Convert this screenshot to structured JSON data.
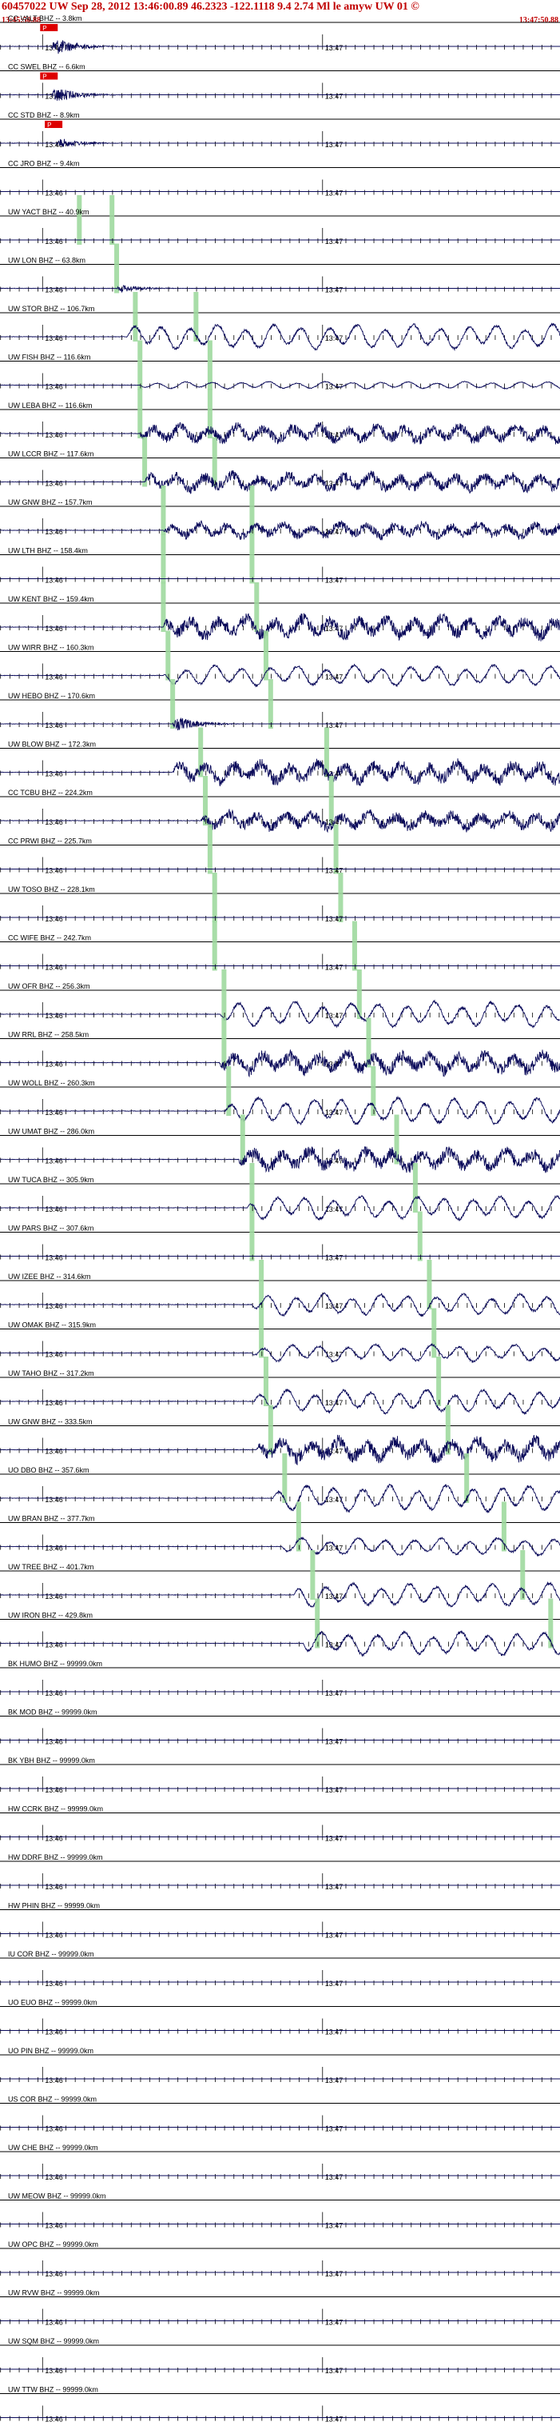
{
  "header": {
    "event_title": "60457022 UW Sep 28, 2012 13:46:00.89    46.2323 -122.1118  9.4 2.74 Ml le amyw UW 01   ©",
    "start_time": "13:45:50.88",
    "end_time": "13:47:50.88"
  },
  "colors": {
    "trace": "#0a0a5a",
    "pick_band": "#9ed99e",
    "pick_marker": "#dd0000",
    "header_text": "#c00000",
    "grid": "#000000"
  },
  "time_tick_labels": [
    "13:46",
    "13:47"
  ],
  "pick_marker_label": "P",
  "chart_data": {
    "type": "line",
    "title": "60457022 UW Sep 28, 2012 13:46:00.89    46.2323 -122.1118  9.4 2.74 Ml le amyw UW 01",
    "xlabel": "",
    "ylabel": "",
    "x_range": [
      "13:45:50.88",
      "13:47:50.88"
    ],
    "series": [
      {
        "name": "CC VALT BHZ -- 3.8km",
        "arrival_s": 11,
        "amp": 0.9,
        "dom": "hf",
        "markers": [
          11
        ]
      },
      {
        "name": "CC SWEL BHZ -- 6.6km",
        "arrival_s": 11,
        "amp": 0.8,
        "dom": "hf",
        "markers": [
          11
        ]
      },
      {
        "name": "CC STD BHZ -- 8.9km",
        "arrival_s": 12,
        "amp": 0.5,
        "dom": "hf",
        "markers": [
          12
        ]
      },
      {
        "name": "CC JRO BHZ -- 9.4km",
        "arrival_s": 12,
        "amp": 0.0,
        "dom": "flat"
      },
      {
        "name": "UW YACT BHZ -- 40.9km",
        "arrival_s": 13,
        "amp": 0.0,
        "dom": "flat",
        "picks_s": [
          17,
          24
        ]
      },
      {
        "name": "UW LON BHZ -- 63.8km",
        "arrival_s": 25,
        "amp": 0.4,
        "dom": "hf",
        "picks_s": [
          25
        ]
      },
      {
        "name": "UW STOR BHZ -- 106.7km",
        "arrival_s": 27,
        "amp": 0.85,
        "dom": "lf",
        "picks_s": [
          29,
          42
        ]
      },
      {
        "name": "UW FISH BHZ -- 116.6km",
        "arrival_s": 30,
        "amp": 0.25,
        "dom": "lf",
        "picks_s": [
          30,
          45
        ]
      },
      {
        "name": "UW LEBA BHZ -- 116.6km",
        "arrival_s": 30,
        "amp": 0.7,
        "dom": "mix",
        "picks_s": [
          30,
          45
        ]
      },
      {
        "name": "UW LCCR BHZ -- 117.6km",
        "arrival_s": 31,
        "amp": 0.7,
        "dom": "mix",
        "picks_s": [
          31,
          46
        ]
      },
      {
        "name": "UW GNW BHZ -- 157.7km",
        "arrival_s": 35,
        "amp": 0.6,
        "dom": "mix",
        "picks_s": [
          35,
          54
        ]
      },
      {
        "name": "UW LTH BHZ -- 158.4km",
        "arrival_s": 35,
        "amp": 0.0,
        "dom": "flat",
        "picks_s": [
          35,
          54
        ]
      },
      {
        "name": "UW KENT BHZ -- 159.4km",
        "arrival_s": 35,
        "amp": 0.85,
        "dom": "mix",
        "picks_s": [
          35,
          55
        ]
      },
      {
        "name": "UW WIRR BHZ -- 160.3km",
        "arrival_s": 35,
        "amp": 0.7,
        "dom": "lf",
        "picks_s": [
          36,
          57
        ]
      },
      {
        "name": "UW HEBO BHZ -- 170.6km",
        "arrival_s": 37,
        "amp": 0.75,
        "dom": "hf",
        "picks_s": [
          37,
          58
        ]
      },
      {
        "name": "UW BLOW BHZ -- 172.3km",
        "arrival_s": 37,
        "amp": 0.85,
        "dom": "mix",
        "picks_s": [
          43,
          70
        ]
      },
      {
        "name": "CC TCBU BHZ -- 224.2km",
        "arrival_s": 43,
        "amp": 0.7,
        "dom": "mix",
        "picks_s": [
          44,
          71
        ]
      },
      {
        "name": "CC PRWI BHZ -- 225.7km",
        "arrival_s": 43,
        "amp": 0.0,
        "dom": "flat",
        "picks_s": [
          45,
          72
        ]
      },
      {
        "name": "UW TOSO BHZ -- 228.1km",
        "arrival_s": 44,
        "amp": 0.0,
        "dom": "flat",
        "picks_s": [
          46,
          73
        ]
      },
      {
        "name": "CC WIFE BHZ -- 242.7km",
        "arrival_s": 46,
        "amp": 0.0,
        "dom": "flat",
        "picks_s": [
          46,
          76
        ]
      },
      {
        "name": "UW OFR BHZ -- 256.3km",
        "arrival_s": 47,
        "amp": 0.85,
        "dom": "lf",
        "picks_s": [
          48,
          77
        ]
      },
      {
        "name": "UW RRL BHZ -- 258.5km",
        "arrival_s": 47,
        "amp": 0.85,
        "dom": "mix",
        "picks_s": [
          48,
          79
        ]
      },
      {
        "name": "UW WOLL BHZ -- 260.3km",
        "arrival_s": 48,
        "amp": 0.9,
        "dom": "lf",
        "picks_s": [
          49,
          80
        ]
      },
      {
        "name": "UW UMAT BHZ -- 286.0km",
        "arrival_s": 51,
        "amp": 0.85,
        "dom": "mix",
        "picks_s": [
          52,
          85
        ]
      },
      {
        "name": "UW TUCA BHZ -- 305.9km",
        "arrival_s": 53,
        "amp": 0.8,
        "dom": "lf",
        "picks_s": [
          54,
          89
        ]
      },
      {
        "name": "UW PARS BHZ -- 307.6km",
        "arrival_s": 53,
        "amp": 0.0,
        "dom": "flat",
        "picks_s": [
          54,
          90
        ]
      },
      {
        "name": "UW IZEE BHZ -- 314.6km",
        "arrival_s": 54,
        "amp": 0.75,
        "dom": "lf",
        "picks_s": [
          56,
          92
        ]
      },
      {
        "name": "UW OMAK BHZ -- 315.9km",
        "arrival_s": 54,
        "amp": 0.6,
        "dom": "lf",
        "picks_s": [
          56,
          93
        ]
      },
      {
        "name": "UW TAHO BHZ -- 317.2km",
        "arrival_s": 54,
        "amp": 0.8,
        "dom": "lf",
        "picks_s": [
          57,
          94
        ]
      },
      {
        "name": "UW GNW BHZ -- 333.5km",
        "arrival_s": 55,
        "amp": 0.9,
        "dom": "mix",
        "picks_s": [
          58,
          96
        ]
      },
      {
        "name": "UO DBO BHZ -- 357.6km",
        "arrival_s": 58,
        "amp": 0.9,
        "dom": "lf",
        "picks_s": [
          61,
          100
        ]
      },
      {
        "name": "UW BRAN BHZ -- 377.7km",
        "arrival_s": 60,
        "amp": 0.6,
        "dom": "lf",
        "picks_s": [
          64,
          108
        ]
      },
      {
        "name": "UW TREE BHZ -- 401.7km",
        "arrival_s": 63,
        "amp": 0.8,
        "dom": "lf",
        "picks_s": [
          67,
          112
        ]
      },
      {
        "name": "UW IRON BHZ -- 429.8km",
        "arrival_s": 65,
        "amp": 0.8,
        "dom": "lf",
        "picks_s": [
          68,
          118
        ]
      },
      {
        "name": "BK HUMO BHZ -- 99999.0km",
        "amp": 0.0,
        "dom": "flat"
      },
      {
        "name": "BK MOD BHZ -- 99999.0km",
        "amp": 0.0,
        "dom": "flat"
      },
      {
        "name": "BK YBH BHZ -- 99999.0km",
        "amp": 0.0,
        "dom": "flat"
      },
      {
        "name": "HW CCRK BHZ -- 99999.0km",
        "amp": 0.0,
        "dom": "flat"
      },
      {
        "name": "HW DDRF BHZ -- 99999.0km",
        "amp": 0.0,
        "dom": "flat"
      },
      {
        "name": "HW PHIN BHZ -- 99999.0km",
        "amp": 0.0,
        "dom": "flat"
      },
      {
        "name": "IU COR BHZ -- 99999.0km",
        "amp": 0.0,
        "dom": "flat"
      },
      {
        "name": "UO EUO BHZ -- 99999.0km",
        "amp": 0.0,
        "dom": "flat"
      },
      {
        "name": "UO PIN BHZ -- 99999.0km",
        "amp": 0.0,
        "dom": "flat"
      },
      {
        "name": "US COR BHZ -- 99999.0km",
        "amp": 0.0,
        "dom": "flat"
      },
      {
        "name": "UW CHE BHZ -- 99999.0km",
        "amp": 0.0,
        "dom": "flat"
      },
      {
        "name": "UW MEOW BHZ -- 99999.0km",
        "amp": 0.0,
        "dom": "flat"
      },
      {
        "name": "UW OPC BHZ -- 99999.0km",
        "amp": 0.0,
        "dom": "flat"
      },
      {
        "name": "UW RVW BHZ -- 99999.0km",
        "amp": 0.0,
        "dom": "flat"
      },
      {
        "name": "UW SQM BHZ -- 99999.0km",
        "amp": 0.0,
        "dom": "flat"
      },
      {
        "name": "UW TTW BHZ -- 99999.0km",
        "amp": 0.0,
        "dom": "flat"
      }
    ]
  }
}
